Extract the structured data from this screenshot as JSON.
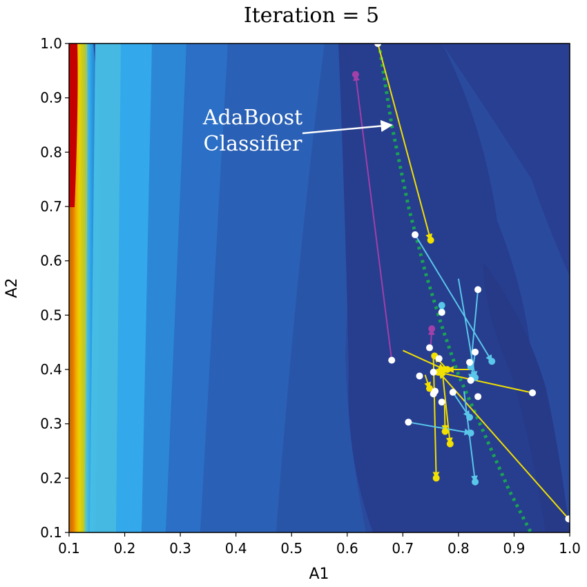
{
  "chart_data": {
    "type": "scatter",
    "title": "Iteration = 5",
    "xlabel": "A1",
    "ylabel": "A2",
    "xlim": [
      0.1,
      1.0
    ],
    "ylim": [
      0.1,
      1.0
    ],
    "xticks": [
      "0.1",
      "0.2",
      "0.3",
      "0.4",
      "0.5",
      "0.6",
      "0.7",
      "0.8",
      "0.9",
      "1.0"
    ],
    "yticks": [
      "0.1",
      "0.2",
      "0.3",
      "0.4",
      "0.5",
      "0.6",
      "0.7",
      "0.8",
      "0.9",
      "1.0"
    ],
    "grid": false,
    "background": "filled-contour (red-yellow-cyan-blue colormap, high values at left edge)",
    "annotation": {
      "text_lines": [
        "AdaBoost",
        "Classifier"
      ],
      "arrow_to": [
        0.68,
        0.85
      ]
    },
    "classifier_boundary": {
      "style": "dotted",
      "color": "#1aa354",
      "x": [
        0.657,
        0.68,
        0.71,
        0.74,
        0.77,
        0.8,
        0.83,
        0.86,
        0.89,
        0.93
      ],
      "y": [
        1.0,
        0.85,
        0.7,
        0.58,
        0.48,
        0.39,
        0.32,
        0.25,
        0.18,
        0.1
      ]
    },
    "series": [
      {
        "color": "#f2e000",
        "segments": [
          {
            "from": [
              0.655,
              1.0
            ],
            "to": [
              0.75,
              0.638
            ]
          },
          {
            "from": [
              0.933,
              0.357
            ],
            "to": [
              0.763,
              0.395
            ]
          },
          {
            "from": [
              0.998,
              0.125
            ],
            "to": [
              0.765,
              0.395
            ]
          },
          {
            "from": [
              0.7,
              0.435
            ],
            "to": [
              0.775,
              0.4
            ]
          },
          {
            "from": [
              0.775,
              0.335
            ],
            "to": [
              0.776,
              0.286
            ]
          },
          {
            "from": [
              0.77,
              0.405
            ],
            "to": [
              0.785,
              0.263
            ]
          },
          {
            "from": [
              0.755,
              0.42
            ],
            "to": [
              0.76,
              0.2
            ]
          },
          {
            "from": [
              0.74,
              0.39
            ],
            "to": [
              0.748,
              0.365
            ]
          },
          {
            "from": [
              0.78,
              0.4
            ],
            "to": [
              0.757,
              0.425
            ]
          },
          {
            "from": [
              0.825,
              0.4
            ],
            "to": [
              0.78,
              0.4
            ]
          }
        ]
      },
      {
        "color": "#5ac7ea",
        "segments": [
          {
            "from": [
              0.722,
              0.648
            ],
            "to": [
              0.86,
              0.415
            ]
          },
          {
            "from": [
              0.8,
              0.567
            ],
            "to": [
              0.83,
              0.385
            ]
          },
          {
            "from": [
              0.835,
              0.547
            ],
            "to": [
              0.822,
              0.405
            ]
          },
          {
            "from": [
              0.77,
              0.505
            ],
            "to": [
              0.77,
              0.518
            ]
          },
          {
            "from": [
              0.71,
              0.303
            ],
            "to": [
              0.822,
              0.283
            ]
          },
          {
            "from": [
              0.81,
              0.36
            ],
            "to": [
              0.83,
              0.193
            ]
          },
          {
            "from": [
              0.79,
              0.358
            ],
            "to": [
              0.82,
              0.312
            ]
          },
          {
            "from": [
              0.83,
              0.43
            ],
            "to": [
              0.822,
              0.38
            ]
          }
        ]
      },
      {
        "color": "#a040a8",
        "segments": [
          {
            "from": [
              0.68,
              0.417
            ],
            "to": [
              0.615,
              0.943
            ]
          },
          {
            "from": [
              0.75,
              0.44
            ],
            "to": [
              0.752,
              0.475
            ]
          }
        ]
      },
      {
        "color": "#ffffff",
        "points": [
          [
            0.655,
            1.0
          ],
          [
            0.722,
            0.648
          ],
          [
            0.835,
            0.547
          ],
          [
            0.77,
            0.505
          ],
          [
            0.68,
            0.417
          ],
          [
            0.748,
            0.44
          ],
          [
            0.73,
            0.388
          ],
          [
            0.755,
            0.395
          ],
          [
            0.765,
            0.42
          ],
          [
            0.755,
            0.355
          ],
          [
            0.758,
            0.36
          ],
          [
            0.77,
            0.34
          ],
          [
            0.79,
            0.358
          ],
          [
            0.822,
            0.38
          ],
          [
            0.835,
            0.35
          ],
          [
            0.83,
            0.432
          ],
          [
            0.82,
            0.413
          ],
          [
            0.71,
            0.303
          ],
          [
            0.933,
            0.357
          ],
          [
            0.998,
            0.125
          ]
        ]
      }
    ]
  }
}
